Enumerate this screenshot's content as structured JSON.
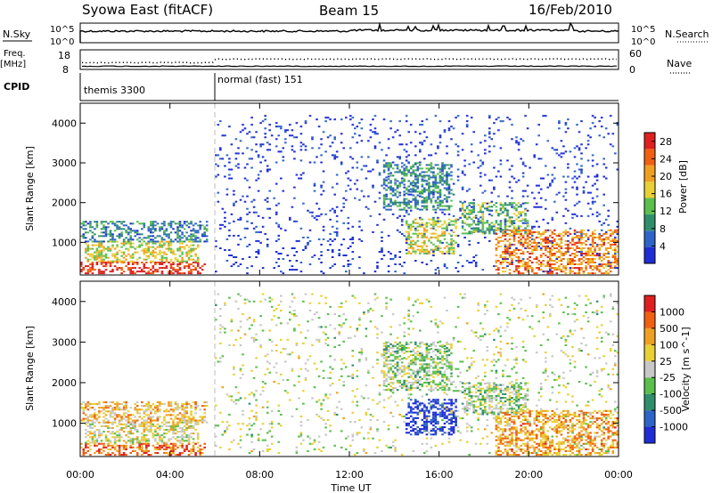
{
  "header": {
    "title": "Syowa East (fitACF)",
    "beam": "Beam 15",
    "date": "16/Feb/2010"
  },
  "nsky_panel": {
    "left_label": "N.Sky",
    "right_label": "N.Search",
    "tick_top": "10^5",
    "tick_bottom": "10^0"
  },
  "freq_panel": {
    "left_label_line1": "Freq.",
    "left_label_line2": "[MHz]",
    "right_label": "Nave",
    "left_ticks": [
      "18",
      "8"
    ],
    "right_ticks": [
      "60",
      "0"
    ]
  },
  "cpid_panel": {
    "label": "CPID",
    "segments": [
      {
        "start_hour": 0,
        "end_hour": 6,
        "text": "themis 3300"
      },
      {
        "start_hour": 6,
        "end_hour": 24,
        "text": "normal (fast) 151"
      }
    ]
  },
  "chart_data": [
    {
      "type": "heatmap",
      "title": "",
      "xlabel": "Time UT",
      "ylabel": "Slant Range [km]",
      "xlim": [
        0,
        24
      ],
      "ylim": [
        180,
        4500
      ],
      "x_ticks": [
        "00:00",
        "04:00",
        "08:00",
        "12:00",
        "16:00",
        "20:00",
        "00:00"
      ],
      "y_ticks": [
        1000,
        2000,
        3000,
        4000
      ],
      "colorbar": {
        "label": "Power [dB]",
        "ticks": [
          4,
          8,
          12,
          16,
          20,
          24,
          28
        ],
        "range": [
          0,
          30
        ],
        "colors": [
          "#1f2dd6",
          "#2e64c8",
          "#2f8f6c",
          "#5bbf4e",
          "#e8d035",
          "#f0a020",
          "#f06010",
          "#e02020"
        ]
      },
      "regions": [
        {
          "t0": 0.0,
          "t1": 5.5,
          "r0": 200,
          "r1": 500,
          "level": 0.92
        },
        {
          "t0": 0.2,
          "t1": 5.2,
          "r0": 500,
          "r1": 1000,
          "level": 0.55
        },
        {
          "t0": 0.0,
          "t1": 5.6,
          "r0": 1000,
          "r1": 1500,
          "level": 0.25
        },
        {
          "t0": 6.0,
          "t1": 24.0,
          "r0": 200,
          "r1": 4200,
          "level": 0.05
        },
        {
          "t0": 13.5,
          "t1": 16.5,
          "r0": 1800,
          "r1": 3000,
          "level": 0.3
        },
        {
          "t0": 14.5,
          "t1": 16.8,
          "r0": 700,
          "r1": 1600,
          "level": 0.55
        },
        {
          "t0": 17.0,
          "t1": 20.0,
          "r0": 1200,
          "r1": 2000,
          "level": 0.4
        },
        {
          "t0": 18.5,
          "t1": 24.0,
          "r0": 200,
          "r1": 1300,
          "level": 0.75
        }
      ]
    },
    {
      "type": "heatmap",
      "title": "",
      "xlabel": "Time UT",
      "ylabel": "Slant Range [km]",
      "xlim": [
        0,
        24
      ],
      "ylim": [
        180,
        4500
      ],
      "x_ticks": [
        "00:00",
        "04:00",
        "08:00",
        "12:00",
        "16:00",
        "20:00",
        "00:00"
      ],
      "y_ticks": [
        1000,
        2000,
        3000,
        4000
      ],
      "colorbar": {
        "label": "Velocity [m s^-1]",
        "ticks": [
          "1000",
          "500",
          "100",
          "25",
          "-25",
          "-100",
          "-500",
          "-1000"
        ],
        "range": [
          -1000,
          1000
        ],
        "colors": [
          "#1f2dd6",
          "#2e64c8",
          "#2f8f6c",
          "#5bbf4e",
          "#c8c8c8",
          "#e8d035",
          "#f0a020",
          "#f06010",
          "#e02020"
        ]
      },
      "regions": [
        {
          "t0": 0.0,
          "t1": 5.5,
          "r0": 200,
          "r1": 500,
          "level": 0.82
        },
        {
          "t0": 0.2,
          "t1": 5.2,
          "r0": 500,
          "r1": 1000,
          "level": 0.55
        },
        {
          "t0": 0.0,
          "t1": 5.6,
          "r0": 1000,
          "r1": 1500,
          "level": 0.65
        },
        {
          "t0": 6.0,
          "t1": 24.0,
          "r0": 200,
          "r1": 4200,
          "level": 0.5
        },
        {
          "t0": 13.5,
          "t1": 16.5,
          "r0": 1800,
          "r1": 3000,
          "level": 0.45
        },
        {
          "t0": 14.5,
          "t1": 16.8,
          "r0": 700,
          "r1": 1600,
          "level": 0.05
        },
        {
          "t0": 17.0,
          "t1": 20.0,
          "r0": 1200,
          "r1": 2000,
          "level": 0.45
        },
        {
          "t0": 18.5,
          "t1": 24.0,
          "r0": 200,
          "r1": 1300,
          "level": 0.72
        }
      ]
    }
  ]
}
